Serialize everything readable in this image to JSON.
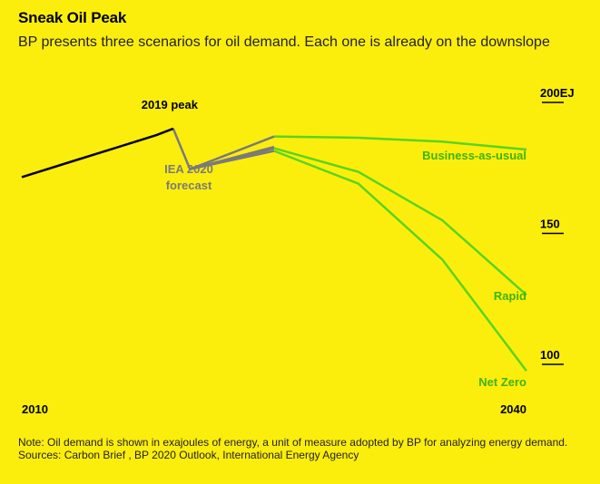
{
  "header": {
    "title": "Sneak Oil Peak",
    "subtitle": "BP presents three scenarios for oil demand. Each one is already on the downslope"
  },
  "footer": {
    "note": "Note: Oil demand is shown in exajoules of energy, a unit of measure adopted by BP for analyzing energy demand.",
    "sources": "Sources: Carbon Brief , BP 2020 Outlook, International Energy Agency"
  },
  "colors": {
    "background": "#fcee0c",
    "history": "#000000",
    "iea_forecast": "#7a7a7a",
    "bp_scenarios": "#5bd41e",
    "scenario_label": "#3fb30f"
  },
  "chart_data": {
    "type": "line",
    "title": "Sneak Oil Peak",
    "xlabel": "",
    "ylabel": "",
    "xlim": [
      2010,
      2040
    ],
    "ylim": [
      90,
      205
    ],
    "x_ticks": [
      {
        "value": 2010,
        "label": "2010"
      },
      {
        "value": 2040,
        "label": "2040"
      }
    ],
    "y_ticks": [
      {
        "value": 200,
        "label": "200EJ"
      },
      {
        "value": 150,
        "label": "150"
      },
      {
        "value": 100,
        "label": "100"
      }
    ],
    "grid": false,
    "series": [
      {
        "key": "history",
        "name": "2019 peak",
        "color_key": "history",
        "points": [
          [
            2010,
            171.5
          ],
          [
            2013,
            177.5
          ],
          [
            2016,
            183.5
          ],
          [
            2018,
            187.5
          ],
          [
            2019,
            190.0
          ]
        ]
      },
      {
        "key": "iea",
        "name": "IEA 2020 forecast",
        "color_key": "iea_forecast",
        "points": [
          [
            2019,
            190.0
          ],
          [
            2020,
            174.5
          ],
          [
            2025,
            183.0
          ]
        ],
        "fan_to": [
          [
            2025,
            187.0
          ],
          [
            2025,
            182.5
          ],
          [
            2025,
            181.5
          ]
        ]
      },
      {
        "key": "bau",
        "name": "Business-as-usual",
        "color_key": "bp_scenarios",
        "points": [
          [
            2025,
            187.0
          ],
          [
            2030,
            186.5
          ],
          [
            2035,
            185.0
          ],
          [
            2040,
            182.0
          ]
        ]
      },
      {
        "key": "rapid",
        "name": "Rapid",
        "color_key": "bp_scenarios",
        "points": [
          [
            2025,
            182.5
          ],
          [
            2030,
            173.5
          ],
          [
            2035,
            155.0
          ],
          [
            2040,
            126.5
          ]
        ]
      },
      {
        "key": "netzero",
        "name": "Net Zero",
        "color_key": "bp_scenarios",
        "points": [
          [
            2025,
            181.5
          ],
          [
            2030,
            169.0
          ],
          [
            2035,
            140.0
          ],
          [
            2040,
            97.5
          ]
        ]
      }
    ],
    "annotations": [
      {
        "key": "peak",
        "text": "2019 peak"
      },
      {
        "key": "iea_line1",
        "text": "IEA 2020"
      },
      {
        "key": "iea_line2",
        "text": "forecast"
      }
    ]
  }
}
